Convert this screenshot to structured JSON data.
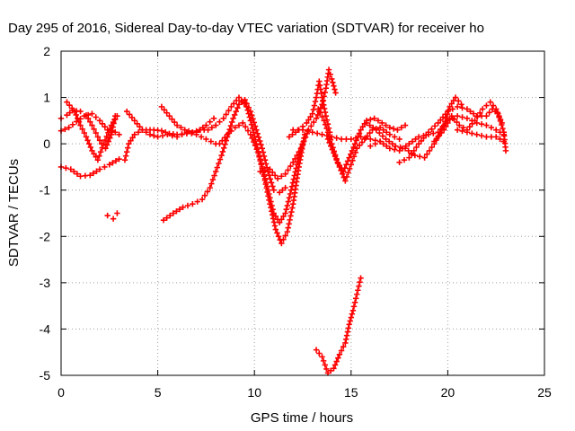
{
  "chart_data": {
    "type": "scatter",
    "title": "Day 295 of 2016, Sidereal Day-to-day VTEC variation (SDTVAR) for receiver ho",
    "xlabel": "GPS time / hours",
    "ylabel": "SDTVAR / TECUs",
    "xlim": [
      0,
      25
    ],
    "ylim": [
      -5,
      2
    ],
    "xticks": [
      0,
      5,
      10,
      15,
      20,
      25
    ],
    "yticks": [
      -5,
      -4,
      -3,
      -2,
      -1,
      0,
      1,
      2
    ],
    "grid": true,
    "marker": "+",
    "color": "#ff0000",
    "series": [
      {
        "points": [
          [
            0,
            -0.5
          ],
          [
            0.5,
            -0.55
          ],
          [
            1,
            -0.7
          ],
          [
            1.5,
            -0.68
          ],
          [
            2,
            -0.55
          ],
          [
            2.5,
            -0.45
          ],
          [
            3,
            -0.33
          ]
        ]
      },
      {
        "points": [
          [
            0,
            0.55
          ],
          [
            0.3,
            0.62
          ],
          [
            0.6,
            0.72
          ],
          [
            1,
            0.7
          ],
          [
            1.3,
            0.62
          ],
          [
            1.6,
            0.4
          ],
          [
            1.9,
            0.15
          ],
          [
            2.1,
            0.0
          ],
          [
            2.3,
            -0.1
          ],
          [
            2.6,
            0.2
          ],
          [
            2.8,
            0.6
          ]
        ]
      },
      {
        "points": [
          [
            0,
            0.28
          ],
          [
            0.4,
            0.35
          ],
          [
            0.8,
            0.48
          ],
          [
            1.2,
            0.6
          ],
          [
            1.6,
            0.65
          ],
          [
            2.0,
            0.5
          ],
          [
            2.4,
            0.3
          ],
          [
            2.8,
            0.25
          ],
          [
            3.0,
            0.2
          ]
        ]
      },
      {
        "points": [
          [
            0.3,
            0.9
          ],
          [
            0.7,
            0.7
          ],
          [
            1.0,
            0.4
          ],
          [
            1.3,
            0.15
          ],
          [
            1.6,
            -0.15
          ],
          [
            1.9,
            -0.35
          ],
          [
            2.2,
            0.0
          ],
          [
            2.6,
            0.4
          ],
          [
            2.9,
            0.6
          ]
        ]
      },
      {
        "points": [
          [
            2.4,
            -1.55
          ],
          [
            2.7,
            -1.62
          ],
          [
            2.9,
            -1.5
          ]
        ]
      },
      {
        "points": [
          [
            3.3,
            -0.35
          ],
          [
            3.5,
            0.0
          ],
          [
            3.8,
            0.2
          ],
          [
            4.2,
            0.3
          ],
          [
            4.8,
            0.3
          ],
          [
            5.2,
            0.28
          ],
          [
            5.6,
            0.22
          ],
          [
            6,
            0.2
          ],
          [
            6.5,
            0.22
          ],
          [
            7,
            0.25
          ],
          [
            7.5,
            0.4
          ],
          [
            7.9,
            0.55
          ]
        ]
      },
      {
        "points": [
          [
            3.4,
            0.7
          ],
          [
            3.8,
            0.5
          ],
          [
            4.2,
            0.3
          ],
          [
            4.6,
            0.2
          ],
          [
            5,
            0.15
          ],
          [
            5.5,
            0.2
          ],
          [
            6,
            0.15
          ],
          [
            6.5,
            0.25
          ],
          [
            7,
            0.2
          ],
          [
            7.5,
            0.1
          ],
          [
            8,
            0.0
          ]
        ]
      },
      {
        "points": [
          [
            5.2,
            0.8
          ],
          [
            5.6,
            0.6
          ],
          [
            6,
            0.4
          ],
          [
            6.4,
            0.3
          ],
          [
            6.8,
            0.25
          ],
          [
            7.2,
            0.3
          ],
          [
            7.6,
            0.3
          ],
          [
            8,
            0.4
          ],
          [
            8.4,
            0.55
          ],
          [
            8.8,
            0.8
          ],
          [
            9.2,
            1.0
          ],
          [
            9.6,
            0.8
          ]
        ]
      },
      {
        "points": [
          [
            5.3,
            -1.65
          ],
          [
            5.8,
            -1.5
          ],
          [
            6.3,
            -1.37
          ],
          [
            6.8,
            -1.3
          ],
          [
            7.3,
            -1.2
          ],
          [
            7.7,
            -0.95
          ],
          [
            8.0,
            -0.6
          ],
          [
            8.3,
            -0.25
          ],
          [
            8.6,
            0.15
          ],
          [
            8.9,
            0.55
          ],
          [
            9.2,
            0.85
          ],
          [
            9.5,
            0.95
          ],
          [
            9.8,
            0.7
          ],
          [
            10.1,
            0.3
          ],
          [
            10.4,
            -0.1
          ],
          [
            10.7,
            -0.6
          ],
          [
            11.0,
            -1.0
          ],
          [
            11.3,
            -1.05
          ],
          [
            11.6,
            -0.95
          ]
        ]
      },
      {
        "points": [
          [
            8.2,
            0.0
          ],
          [
            8.6,
            0.2
          ],
          [
            9.0,
            0.35
          ],
          [
            9.4,
            0.45
          ],
          [
            9.8,
            0.2
          ],
          [
            10.2,
            -0.2
          ],
          [
            10.5,
            -0.7
          ],
          [
            10.8,
            -1.3
          ],
          [
            11.1,
            -1.85
          ],
          [
            11.4,
            -2.15
          ],
          [
            11.7,
            -1.9
          ],
          [
            12.0,
            -1.3
          ],
          [
            12.3,
            -0.5
          ],
          [
            12.6,
            0.2
          ]
        ]
      },
      {
        "points": [
          [
            9.5,
            0.95
          ],
          [
            9.8,
            0.5
          ],
          [
            10.1,
            0.0
          ],
          [
            10.4,
            -0.5
          ],
          [
            10.7,
            -1.0
          ],
          [
            11.0,
            -1.5
          ],
          [
            11.3,
            -1.7
          ],
          [
            11.6,
            -1.5
          ],
          [
            11.9,
            -1.0
          ],
          [
            12.2,
            -0.45
          ],
          [
            12.5,
            0.0
          ]
        ]
      },
      {
        "points": [
          [
            10.3,
            -0.6
          ],
          [
            10.8,
            -0.55
          ],
          [
            11.2,
            -0.75
          ],
          [
            11.6,
            -0.65
          ],
          [
            12.0,
            -0.4
          ],
          [
            12.4,
            -0.1
          ],
          [
            12.8,
            0.3
          ],
          [
            13.2,
            0.55
          ],
          [
            13.5,
            0.85
          ],
          [
            13.7,
            1.2
          ],
          [
            13.85,
            1.6
          ],
          [
            14.0,
            1.4
          ],
          [
            14.2,
            1.1
          ]
        ]
      },
      {
        "points": [
          [
            11.8,
            0.15
          ],
          [
            12.3,
            0.3
          ],
          [
            12.7,
            0.45
          ],
          [
            13.0,
            0.65
          ],
          [
            13.2,
            1.0
          ],
          [
            13.35,
            1.35
          ],
          [
            13.5,
            1.0
          ],
          [
            13.7,
            0.6
          ],
          [
            13.9,
            0.25
          ]
        ]
      },
      {
        "points": [
          [
            12.0,
            0.3
          ],
          [
            12.5,
            0.3
          ],
          [
            13.0,
            0.25
          ],
          [
            13.5,
            0.2
          ],
          [
            14.0,
            0.15
          ],
          [
            14.5,
            0.1
          ],
          [
            15.0,
            0.1
          ],
          [
            15.5,
            0.15
          ],
          [
            16.0,
            0.1
          ],
          [
            16.5,
            0.05
          ]
        ]
      },
      {
        "points": [
          [
            13.2,
            -4.45
          ],
          [
            13.5,
            -4.6
          ],
          [
            13.8,
            -4.95
          ],
          [
            14.1,
            -4.85
          ],
          [
            14.4,
            -4.55
          ],
          [
            14.7,
            -4.3
          ],
          [
            14.9,
            -3.9
          ],
          [
            15.1,
            -3.6
          ],
          [
            15.3,
            -3.25
          ],
          [
            15.5,
            -2.9
          ]
        ]
      },
      {
        "points": [
          [
            13.3,
            0.75
          ],
          [
            13.6,
            0.5
          ],
          [
            14.0,
            0.0
          ],
          [
            14.3,
            -0.4
          ],
          [
            14.6,
            -0.6
          ],
          [
            14.9,
            -0.3
          ],
          [
            15.2,
            0.0
          ],
          [
            15.5,
            0.3
          ],
          [
            15.8,
            0.5
          ],
          [
            16.2,
            0.55
          ],
          [
            16.6,
            0.45
          ],
          [
            17.0,
            0.35
          ],
          [
            17.4,
            0.3
          ],
          [
            17.8,
            0.4
          ]
        ]
      },
      {
        "points": [
          [
            13.8,
            0.1
          ],
          [
            14.1,
            -0.2
          ],
          [
            14.4,
            -0.5
          ],
          [
            14.7,
            -0.8
          ],
          [
            15.0,
            -0.45
          ],
          [
            15.3,
            -0.1
          ],
          [
            15.7,
            0.1
          ],
          [
            16.1,
            0.3
          ],
          [
            16.5,
            0.35
          ],
          [
            17.0,
            0.2
          ],
          [
            17.5,
            0.1
          ]
        ]
      },
      {
        "points": [
          [
            15.8,
            0.45
          ],
          [
            16.3,
            0.3
          ],
          [
            16.8,
            0.1
          ],
          [
            17.3,
            -0.05
          ],
          [
            17.8,
            -0.1
          ],
          [
            18.3,
            -0.25
          ],
          [
            18.8,
            -0.3
          ],
          [
            19.3,
            0.0
          ],
          [
            19.8,
            0.4
          ],
          [
            20.1,
            0.8
          ],
          [
            20.4,
            1.0
          ],
          [
            20.7,
            0.85
          ]
        ]
      },
      {
        "points": [
          [
            16.0,
            -0.05
          ],
          [
            16.5,
            0.05
          ],
          [
            17.0,
            -0.1
          ],
          [
            17.5,
            -0.15
          ],
          [
            18.0,
            0.0
          ],
          [
            18.5,
            0.15
          ],
          [
            19.0,
            0.2
          ],
          [
            19.5,
            0.25
          ],
          [
            20.0,
            0.5
          ],
          [
            20.5,
            0.6
          ],
          [
            21.0,
            0.55
          ],
          [
            21.5,
            0.45
          ],
          [
            22.0,
            0.4
          ],
          [
            22.5,
            0.3
          ],
          [
            22.9,
            0.2
          ]
        ]
      },
      {
        "points": [
          [
            17.5,
            -0.4
          ],
          [
            18.0,
            -0.3
          ],
          [
            18.5,
            0.0
          ],
          [
            19.0,
            0.25
          ],
          [
            19.5,
            0.45
          ],
          [
            20.0,
            0.7
          ],
          [
            20.5,
            0.8
          ],
          [
            21.0,
            0.75
          ],
          [
            21.5,
            0.6
          ],
          [
            22.0,
            0.6
          ],
          [
            22.3,
            0.75
          ],
          [
            22.6,
            0.65
          ],
          [
            22.9,
            0.25
          ],
          [
            23.0,
            -0.15
          ]
        ]
      },
      {
        "points": [
          [
            19.3,
            0.05
          ],
          [
            19.8,
            0.3
          ],
          [
            20.2,
            0.6
          ],
          [
            20.6,
            0.4
          ],
          [
            21.0,
            0.3
          ],
          [
            21.4,
            0.5
          ],
          [
            21.8,
            0.75
          ],
          [
            22.2,
            0.9
          ],
          [
            22.5,
            0.75
          ],
          [
            22.8,
            0.45
          ]
        ]
      },
      {
        "points": [
          [
            20.5,
            0.3
          ],
          [
            21.0,
            0.25
          ],
          [
            21.5,
            0.2
          ],
          [
            22.0,
            0.15
          ],
          [
            22.5,
            0.15
          ],
          [
            22.9,
            0.05
          ]
        ]
      }
    ]
  }
}
